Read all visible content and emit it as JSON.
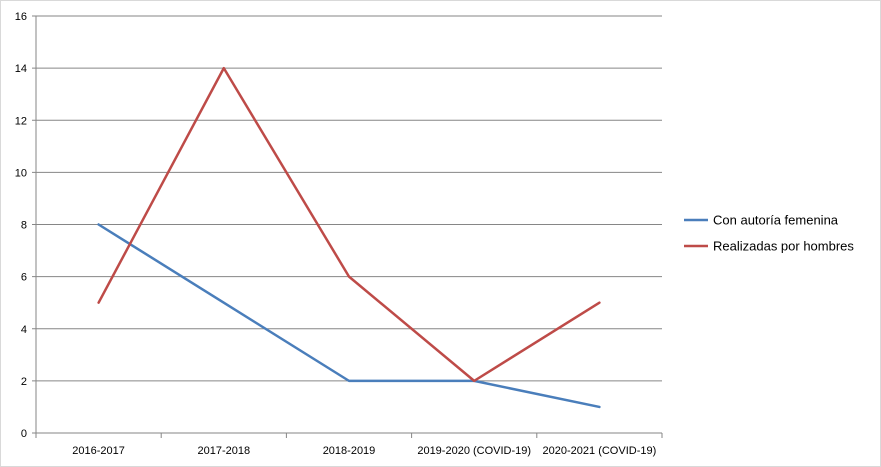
{
  "chart_data": {
    "type": "line",
    "title": "",
    "xlabel": "",
    "ylabel": "",
    "categories": [
      "2016-2017",
      "2017-2018",
      "2018-2019",
      "2019-2020 (COVID-19)",
      "2020-2021 (COVID-19)"
    ],
    "ylim": [
      0,
      16
    ],
    "yticks": [
      0,
      2,
      4,
      6,
      8,
      10,
      12,
      14,
      16
    ],
    "grid": true,
    "legend_position": "right",
    "series": [
      {
        "name": "Con autoría femenina",
        "color": "#4a7ebb",
        "values": [
          8,
          5,
          2,
          2,
          1
        ]
      },
      {
        "name": "Realizadas por hombres",
        "color": "#be4b48",
        "values": [
          5,
          14,
          6,
          2,
          5
        ]
      }
    ]
  }
}
